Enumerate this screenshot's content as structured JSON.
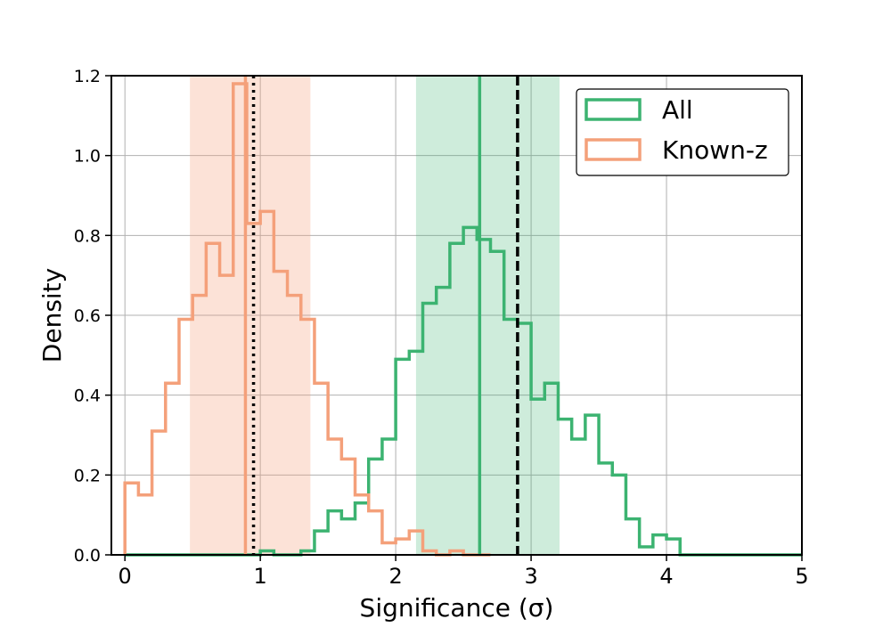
{
  "chart_data": {
    "type": "histogram",
    "xlabel": "Significance (σ)",
    "ylabel": "Density",
    "xlim": [
      -0.1,
      5.0
    ],
    "ylim": [
      0.0,
      1.2
    ],
    "grid": true,
    "legend_position": "top-right",
    "x_ticks": [
      0,
      1,
      2,
      3,
      4,
      5
    ],
    "y_ticks": [
      0.0,
      0.2,
      0.4,
      0.6,
      0.8,
      1.0,
      1.2
    ],
    "series": [
      {
        "name": "All",
        "color": "#3cb371",
        "bin_edges": [
          0.0,
          0.1,
          0.2,
          0.3,
          0.4,
          0.5,
          0.6,
          0.7,
          0.8,
          0.9,
          1.0,
          1.1,
          1.2,
          1.3,
          1.4,
          1.5,
          1.6,
          1.7,
          1.8,
          1.9,
          2.0,
          2.1,
          2.2,
          2.3,
          2.4,
          2.5,
          2.6,
          2.7,
          2.8,
          2.9,
          3.0,
          3.1,
          3.2,
          3.3,
          3.4,
          3.5,
          3.6,
          3.7,
          3.8,
          3.9,
          4.0,
          4.1,
          4.2,
          4.3,
          4.4,
          4.5,
          4.6,
          4.7,
          4.8,
          4.9,
          5.0
        ],
        "densities": [
          0.0,
          0.0,
          0.0,
          0.0,
          0.0,
          0.0,
          0.0,
          0.0,
          0.0,
          0.0,
          0.01,
          0.0,
          0.0,
          0.01,
          0.06,
          0.11,
          0.09,
          0.13,
          0.24,
          0.29,
          0.49,
          0.51,
          0.63,
          0.67,
          0.78,
          0.82,
          0.79,
          0.76,
          0.59,
          0.58,
          0.39,
          0.43,
          0.34,
          0.29,
          0.35,
          0.23,
          0.2,
          0.09,
          0.02,
          0.05,
          0.04,
          0.0,
          0.0,
          0.0,
          0.0,
          0.0,
          0.0,
          0.0,
          0.0,
          0.0
        ],
        "median": 2.62,
        "interval": [
          2.15,
          3.21
        ]
      },
      {
        "name": "Known-z",
        "color": "#f4a07a",
        "bin_edges": [
          0.0,
          0.1,
          0.2,
          0.3,
          0.4,
          0.5,
          0.6,
          0.7,
          0.8,
          0.9,
          1.0,
          1.1,
          1.2,
          1.3,
          1.4,
          1.5,
          1.6,
          1.7,
          1.8,
          1.9,
          2.0,
          2.1,
          2.2,
          2.3,
          2.4,
          2.5,
          2.6,
          2.7
        ],
        "densities": [
          0.18,
          0.15,
          0.31,
          0.43,
          0.59,
          0.65,
          0.78,
          0.7,
          1.18,
          0.83,
          0.86,
          0.71,
          0.65,
          0.59,
          0.43,
          0.29,
          0.24,
          0.15,
          0.11,
          0.03,
          0.04,
          0.06,
          0.01,
          0.0,
          0.01,
          0.0,
          0.0
        ],
        "median": 0.89,
        "interval": [
          0.48,
          1.37
        ]
      }
    ],
    "reference_lines": [
      {
        "x": 2.9,
        "style": "dashed",
        "color": "#000000"
      },
      {
        "x": 0.95,
        "style": "dotted",
        "color": "#000000"
      }
    ]
  }
}
